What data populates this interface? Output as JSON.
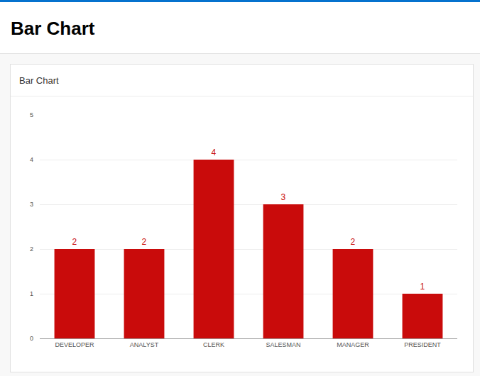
{
  "page": {
    "title": "Bar Chart"
  },
  "chart_data": {
    "type": "bar",
    "title": "Bar Chart",
    "categories": [
      "DEVELOPER",
      "ANALYST",
      "CLERK",
      "SALESMAN",
      "MANAGER",
      "PRESIDENT"
    ],
    "values": [
      2,
      2,
      4,
      3,
      2,
      1
    ],
    "color": "#c90b0b",
    "ylim": [
      0,
      5
    ],
    "yticks": [
      0,
      1,
      2,
      3,
      4,
      5
    ],
    "grid": true,
    "data_labels": true
  }
}
